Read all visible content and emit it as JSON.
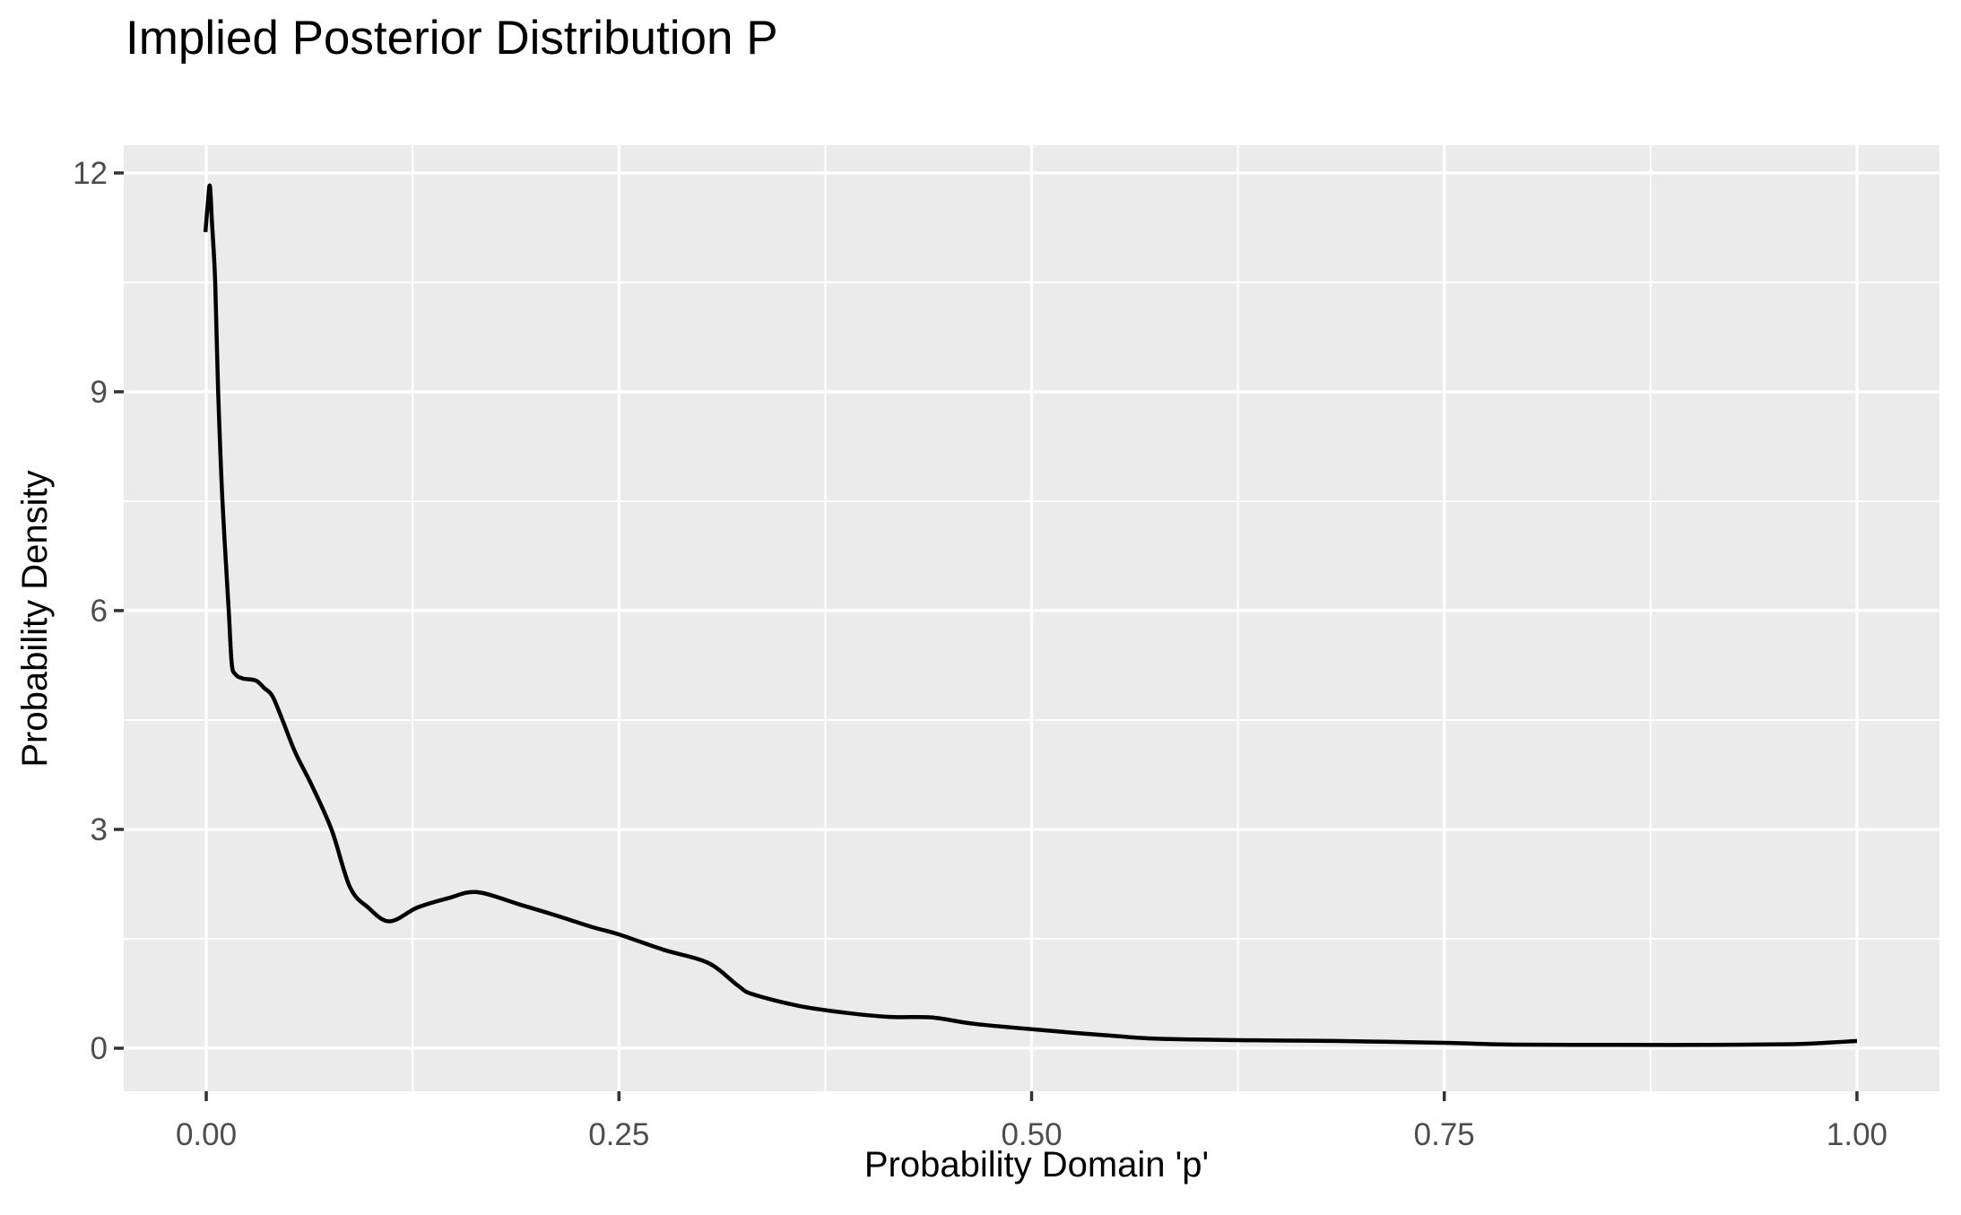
{
  "colors": {
    "page_background": "#FFFFFF",
    "panel_background": "#EBEBEB",
    "grid_major": "#FFFFFF",
    "grid_minor": "#FFFFFF",
    "curve": "#000000",
    "tick_mark": "#333333",
    "tick_label": "#4D4D4D",
    "axis_title": "#000000",
    "title": "#000000"
  },
  "chart_data": {
    "type": "line",
    "title": "Implied Posterior Distribution P",
    "xlabel": "Probability Domain 'p'",
    "ylabel": "Probability Density",
    "xlim": [
      -0.05,
      1.05
    ],
    "ylim": [
      -0.59,
      12.38
    ],
    "grid": true,
    "legend_position": "none",
    "x_ticks": [
      {
        "value": 0.0,
        "label": "0.00"
      },
      {
        "value": 0.25,
        "label": "0.25"
      },
      {
        "value": 0.5,
        "label": "0.50"
      },
      {
        "value": 0.75,
        "label": "0.75"
      },
      {
        "value": 1.0,
        "label": "1.00"
      }
    ],
    "y_ticks": [
      {
        "value": 0,
        "label": "0"
      },
      {
        "value": 3,
        "label": "3"
      },
      {
        "value": 6,
        "label": "6"
      },
      {
        "value": 9,
        "label": "9"
      },
      {
        "value": 12,
        "label": "12"
      }
    ],
    "x_minor": [
      0.125,
      0.375,
      0.625,
      0.875
    ],
    "y_minor": [
      1.5,
      4.5,
      7.5,
      10.5
    ],
    "series": [
      {
        "name": "posterior-density-curve",
        "points": [
          [
            -0.0005,
            11.19
          ],
          [
            0.001,
            11.6
          ],
          [
            0.0022,
            11.82
          ],
          [
            0.0035,
            11.3
          ],
          [
            0.0054,
            10.5
          ],
          [
            0.0072,
            9.0
          ],
          [
            0.0098,
            7.5
          ],
          [
            0.0136,
            6.0
          ],
          [
            0.0154,
            5.28
          ],
          [
            0.0175,
            5.13
          ],
          [
            0.022,
            5.07
          ],
          [
            0.03,
            5.04
          ],
          [
            0.035,
            4.94
          ],
          [
            0.04,
            4.83
          ],
          [
            0.046,
            4.51
          ],
          [
            0.054,
            4.05
          ],
          [
            0.064,
            3.6
          ],
          [
            0.076,
            2.99
          ],
          [
            0.087,
            2.21
          ],
          [
            0.098,
            1.93
          ],
          [
            0.111,
            1.74
          ],
          [
            0.128,
            1.93
          ],
          [
            0.147,
            2.06
          ],
          [
            0.164,
            2.14
          ],
          [
            0.19,
            1.97
          ],
          [
            0.212,
            1.82
          ],
          [
            0.234,
            1.66
          ],
          [
            0.25,
            1.56
          ],
          [
            0.277,
            1.35
          ],
          [
            0.304,
            1.17
          ],
          [
            0.322,
            0.86
          ],
          [
            0.331,
            0.74
          ],
          [
            0.359,
            0.58
          ],
          [
            0.386,
            0.49
          ],
          [
            0.413,
            0.43
          ],
          [
            0.44,
            0.42
          ],
          [
            0.467,
            0.33
          ],
          [
            0.521,
            0.22
          ],
          [
            0.55,
            0.17
          ],
          [
            0.576,
            0.13
          ],
          [
            0.63,
            0.11
          ],
          [
            0.684,
            0.1
          ],
          [
            0.75,
            0.074
          ],
          [
            0.793,
            0.049
          ],
          [
            0.853,
            0.047
          ],
          [
            0.907,
            0.046
          ],
          [
            0.961,
            0.055
          ],
          [
            0.985,
            0.08
          ],
          [
            1.0,
            0.1
          ]
        ]
      }
    ]
  }
}
